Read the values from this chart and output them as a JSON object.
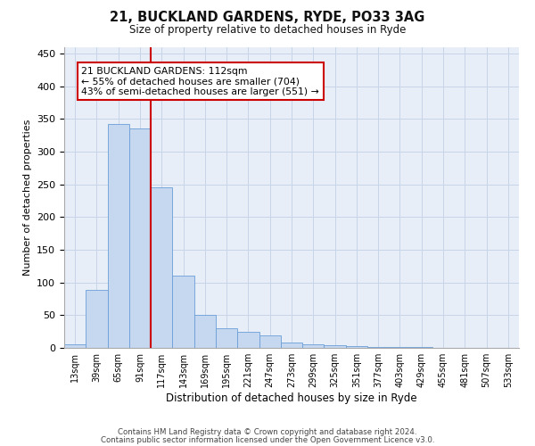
{
  "title1": "21, BUCKLAND GARDENS, RYDE, PO33 3AG",
  "title2": "Size of property relative to detached houses in Ryde",
  "xlabel": "Distribution of detached houses by size in Ryde",
  "ylabel": "Number of detached properties",
  "footer1": "Contains HM Land Registry data © Crown copyright and database right 2024.",
  "footer2": "Contains public sector information licensed under the Open Government Licence v3.0.",
  "bar_labels": [
    "13sqm",
    "39sqm",
    "65sqm",
    "91sqm",
    "117sqm",
    "143sqm",
    "169sqm",
    "195sqm",
    "221sqm",
    "247sqm",
    "273sqm",
    "299sqm",
    "325sqm",
    "351sqm",
    "377sqm",
    "403sqm",
    "429sqm",
    "455sqm",
    "481sqm",
    "507sqm",
    "533sqm"
  ],
  "bar_values": [
    5,
    88,
    342,
    335,
    245,
    110,
    50,
    30,
    25,
    19,
    8,
    5,
    4,
    3,
    2,
    1,
    1,
    0,
    0,
    0,
    0
  ],
  "bar_color": "#c5d8f0",
  "bar_edge_color": "#6a9fd8",
  "grid_color": "#c8d4e8",
  "annotation_text": "21 BUCKLAND GARDENS: 112sqm\n← 55% of detached houses are smaller (704)\n43% of semi-detached houses are larger (551) →",
  "vline_pos": 3.5,
  "annotation_box_color": "#ffffff",
  "annotation_box_edge": "#cc0000",
  "vline_color": "#cc0000",
  "ylim": [
    0,
    460
  ],
  "yticks": [
    0,
    50,
    100,
    150,
    200,
    250,
    300,
    350,
    400,
    450
  ],
  "bg_color": "#e8eef8"
}
